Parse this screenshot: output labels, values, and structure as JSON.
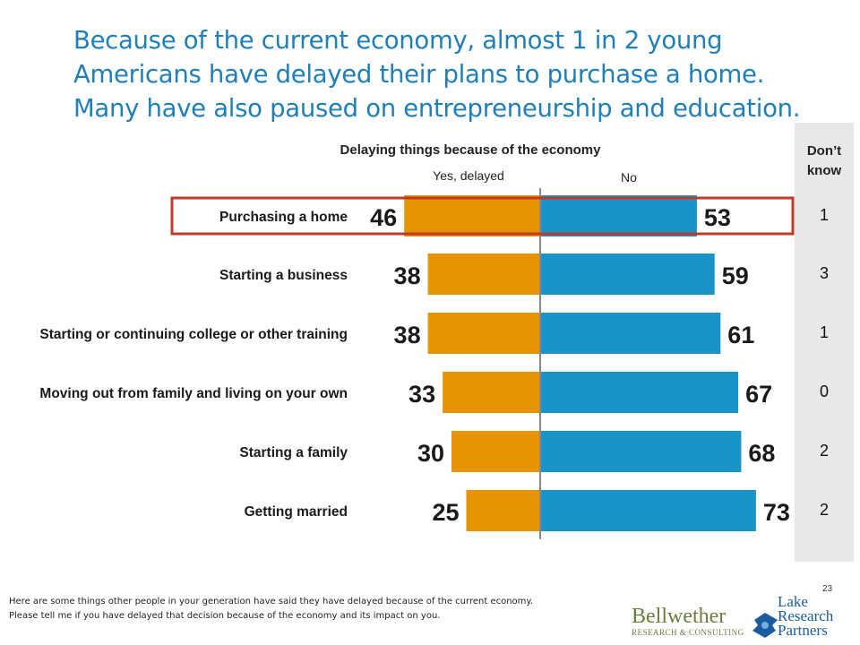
{
  "headline": {
    "line1": "Because of the current economy, almost 1 in 2 young",
    "line2": "Americans have delayed their plans to purchase a home.",
    "line3": "Many have also paused on entrepreneurship and education."
  },
  "chart_data": {
    "type": "bar",
    "title": "Delaying things because of the economy",
    "categories": [
      "Purchasing a home",
      "Starting a business",
      "Starting or continuing college or other training",
      "Moving out from family and living on your own",
      "Starting a family",
      "Getting married"
    ],
    "series": [
      {
        "name": "Yes, delayed",
        "values": [
          46,
          38,
          38,
          33,
          30,
          25
        ],
        "color": "#e59400"
      },
      {
        "name": "No",
        "values": [
          53,
          59,
          61,
          67,
          68,
          73
        ],
        "color": "#1a93c9"
      }
    ],
    "dont_know": {
      "label_line1": "Don’t",
      "label_line2": "know",
      "values": [
        1,
        3,
        1,
        0,
        2,
        2
      ]
    },
    "highlighted_category": "Purchasing a home",
    "highlight_color": "#c0392b",
    "xlim": [
      0,
      100
    ]
  },
  "footnote": {
    "line1": "Here are some things other people in your generation have said they have delayed because of the current economy.",
    "line2": "Please tell me if you have delayed that decision because of the economy and its impact on you."
  },
  "page_number": "23",
  "logos": {
    "bellwether_name": "Bellwether",
    "bellwether_sub": "RESEARCH & CONSULTING",
    "lake_line1": "Lake",
    "lake_line2": "Research",
    "lake_line3": "Partners"
  }
}
